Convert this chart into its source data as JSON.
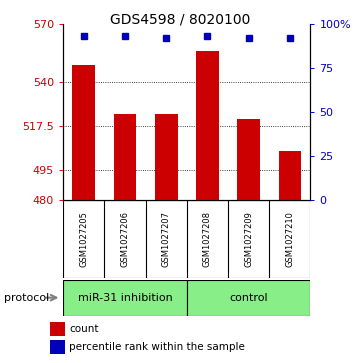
{
  "title": "GDS4598 / 8020100",
  "samples": [
    "GSM1027205",
    "GSM1027206",
    "GSM1027207",
    "GSM1027208",
    "GSM1027209",
    "GSM1027210"
  ],
  "counts": [
    549,
    524,
    524,
    556,
    521,
    505
  ],
  "percentile_ranks": [
    93,
    93,
    92,
    93,
    92,
    92
  ],
  "ylim_left": [
    480,
    570
  ],
  "yticks_left": [
    480,
    495,
    517.5,
    540,
    570
  ],
  "yticks_right": [
    0,
    25,
    50,
    75,
    100
  ],
  "ylim_right": [
    0,
    100
  ],
  "bar_color": "#cc0000",
  "dot_color": "#0000bb",
  "protocol_groups": [
    {
      "label": "miR-31 inhibition",
      "color": "#88ee88",
      "start": 0,
      "end": 3
    },
    {
      "label": "control",
      "color": "#88ee88",
      "start": 3,
      "end": 6
    }
  ],
  "protocol_label": "protocol",
  "legend_count_label": "count",
  "legend_percentile_label": "percentile rank within the sample",
  "bg_color": "#ffffff",
  "label_area_color": "#cccccc",
  "left_ytick_color": "#cc0000",
  "right_ytick_color": "#0000bb",
  "title_fontsize": 10,
  "tick_fontsize": 8,
  "sample_fontsize": 6,
  "proto_fontsize": 8,
  "legend_fontsize": 7.5
}
